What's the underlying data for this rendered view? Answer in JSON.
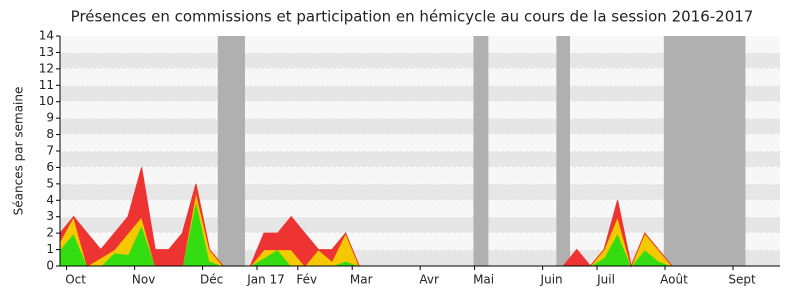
{
  "chart_data": {
    "type": "stacked-area",
    "title": "Présences en commissions et participation en hémicycle au cours de la session 2016-2017",
    "y_label": "Séances par semaine",
    "categories": [
      null,
      "Oct",
      null,
      null,
      null,
      null,
      "Nov",
      null,
      null,
      null,
      null,
      "Déc",
      null,
      null,
      null,
      "Jan 17",
      null,
      null,
      "Fév",
      null,
      null,
      null,
      "Mar",
      null,
      null,
      null,
      null,
      "Avr",
      null,
      null,
      null,
      "Mai",
      null,
      null,
      null,
      null,
      "Juin",
      null,
      null,
      null,
      "Juil",
      null,
      null,
      null,
      null,
      "Août",
      null,
      null,
      null,
      null,
      "Sept",
      null,
      null
    ],
    "series": [
      {
        "color": "#33dd11",
        "values": [
          1,
          2,
          0,
          0,
          0.8,
          0.7,
          2.5,
          0,
          0,
          0,
          4,
          0.3,
          0,
          0,
          0,
          0.5,
          1,
          0,
          0,
          0,
          0,
          0.3,
          0,
          0,
          0,
          0,
          0,
          0,
          0,
          0,
          0,
          0,
          0,
          0,
          0,
          0,
          0,
          0,
          0,
          0,
          0.5,
          2,
          0,
          1,
          0.3,
          0,
          0,
          0,
          0,
          0,
          0,
          0,
          0
        ]
      },
      {
        "color": "#f5c800",
        "values": [
          0.5,
          1,
          0,
          0.5,
          0.2,
          1.3,
          0.5,
          0,
          0,
          0,
          0.5,
          0.7,
          0,
          0,
          0,
          0.5,
          0,
          1,
          0,
          1,
          0.3,
          1.7,
          0,
          0,
          0,
          0,
          0,
          0,
          0,
          0,
          0,
          0,
          0,
          0,
          0,
          0,
          0,
          0,
          0,
          0,
          0.5,
          1,
          0,
          1,
          0.7,
          0,
          0,
          0,
          0,
          0,
          0,
          0,
          0
        ]
      },
      {
        "color": "#ee3333",
        "values": [
          0.5,
          0,
          2,
          0.5,
          1,
          1,
          3,
          1,
          1,
          2,
          0.5,
          0,
          0,
          0,
          0,
          1,
          1,
          2,
          2,
          0,
          0.7,
          0,
          0,
          0,
          0,
          0,
          0,
          0,
          0,
          0,
          0,
          0,
          0,
          0,
          0,
          0,
          0,
          0,
          1,
          0,
          0,
          1,
          0,
          0,
          0,
          0,
          0,
          0,
          0,
          0,
          0,
          0,
          0
        ]
      }
    ],
    "highlight_ranges": [
      [
        11.6,
        13.6
      ],
      [
        30.4,
        31.5
      ],
      [
        36.5,
        37.5
      ],
      [
        44.4,
        50.4
      ]
    ],
    "highlight_color": "#b0b0b0",
    "ylim": [
      0,
      14
    ],
    "yticks": [
      0,
      1,
      2,
      3,
      4,
      5,
      6,
      7,
      8,
      9,
      10,
      11,
      12,
      13,
      14
    ],
    "grid": true
  }
}
